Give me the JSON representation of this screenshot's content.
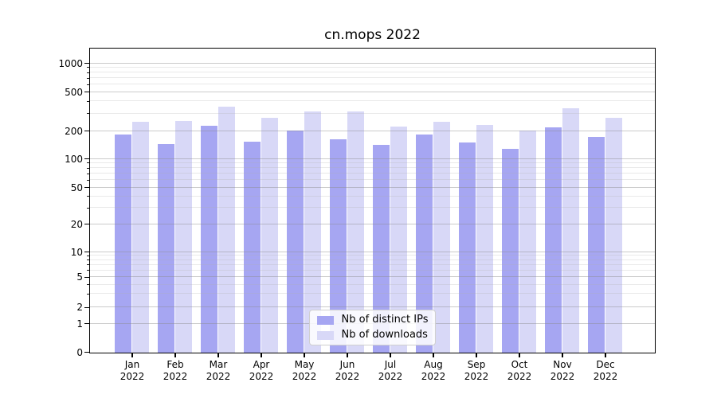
{
  "chart_data": {
    "type": "bar",
    "title": "cn.mops 2022",
    "categories": [
      "Jan",
      "Feb",
      "Mar",
      "Apr",
      "May",
      "Jun",
      "Jul",
      "Aug",
      "Sep",
      "Oct",
      "Nov",
      "Dec"
    ],
    "year_label": "2022",
    "series": [
      {
        "name": "Nb of distinct IPs",
        "color": "#a6a6f2",
        "values": [
          185,
          145,
          228,
          155,
          205,
          165,
          143,
          184,
          152,
          130,
          218,
          173
        ]
      },
      {
        "name": "Nb of downloads",
        "color": "#d8d8f7",
        "values": [
          250,
          255,
          355,
          275,
          320,
          320,
          225,
          250,
          232,
          203,
          347,
          276
        ]
      }
    ],
    "yscale": "pseudo-log",
    "yticks": [
      0,
      1,
      2,
      5,
      10,
      20,
      50,
      100,
      200,
      500,
      1000
    ],
    "minor_yticks": [
      3,
      4,
      6,
      7,
      8,
      9,
      30,
      40,
      60,
      70,
      80,
      90,
      300,
      400,
      600,
      700,
      800,
      900
    ],
    "ylim": [
      0,
      1500
    ],
    "grid": true,
    "legend_position": "lower center",
    "grid_color": "#b0b0b0",
    "axis_color": "#000000",
    "background": "#ffffff"
  }
}
